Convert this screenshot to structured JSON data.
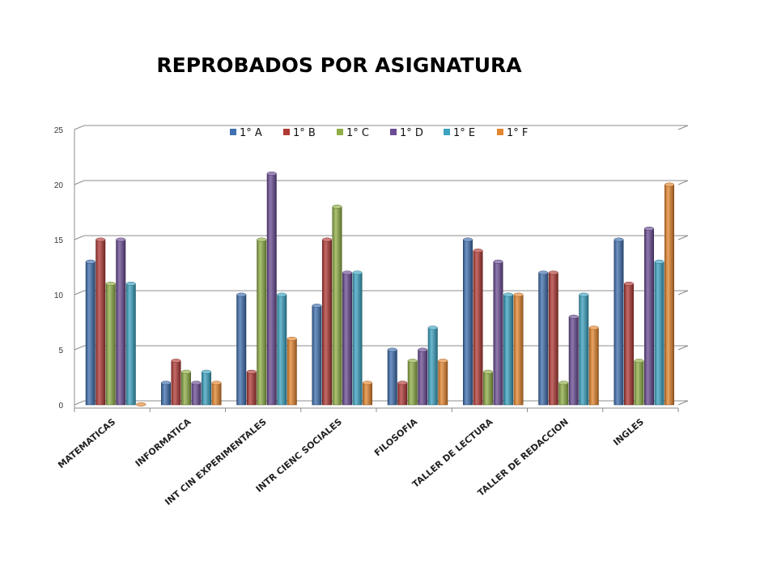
{
  "chart_data": {
    "type": "bar",
    "title": "REPROBADOS POR ASIGNATURA",
    "xlabel": "",
    "ylabel": "",
    "ylim": [
      0,
      25
    ],
    "yticks": [
      "0",
      "5",
      "10",
      "15",
      "20",
      "25"
    ],
    "grid": true,
    "legend_position": "top",
    "categories": [
      "MATEMATICAS",
      "INFORMATICA",
      "INT CIN EXPERIMENTALES",
      "INTR CIENC SOCIALES",
      "FILOSOFIA",
      "TALLER DE LECTURA",
      "TALLER DE REDACCION",
      "INGLES"
    ],
    "series": [
      {
        "name": "1° A",
        "color": "#3f6fae",
        "values": [
          13,
          2,
          10,
          9,
          5,
          15,
          12,
          15
        ]
      },
      {
        "name": "1° B",
        "color": "#b03a36",
        "values": [
          15,
          4,
          3,
          15,
          2,
          14,
          12,
          11
        ]
      },
      {
        "name": "1° C",
        "color": "#8fae45",
        "values": [
          11,
          3,
          15,
          18,
          4,
          3,
          2,
          4
        ]
      },
      {
        "name": "1° D",
        "color": "#6a4c93",
        "values": [
          15,
          2,
          21,
          12,
          5,
          13,
          8,
          16
        ]
      },
      {
        "name": "1° E",
        "color": "#3ba2c0",
        "values": [
          11,
          3,
          10,
          12,
          7,
          10,
          10,
          13
        ]
      },
      {
        "name": "1° F",
        "color": "#e3852e",
        "values": [
          0,
          2,
          6,
          2,
          4,
          10,
          7,
          20
        ]
      }
    ]
  }
}
